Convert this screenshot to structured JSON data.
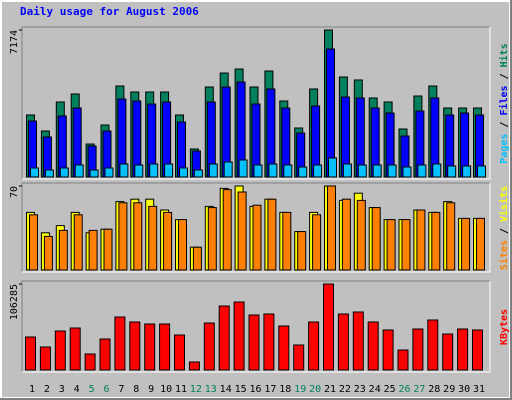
{
  "chart_data": [
    {
      "type": "bar",
      "title": "Daily usage for August 2006",
      "legend_separator": " / ",
      "ylim": [
        0,
        7174
      ],
      "yticks": [
        7174
      ],
      "series": [
        {
          "name": "Hits",
          "color": "#00805c",
          "values": [
            3026,
            2245,
            3660,
            4051,
            1610,
            2538,
            4441,
            4148,
            4148,
            4148,
            3026,
            1367,
            4392,
            5076,
            5271,
            4392,
            5173,
            3709,
            2391,
            4295,
            7174,
            4880,
            4734,
            3856,
            3660,
            2343,
            3953,
            4441,
            3367,
            3367,
            3367
          ]
        },
        {
          "name": "Files",
          "color": "#0000ff",
          "values": [
            2733,
            1952,
            2977,
            3367,
            1513,
            2245,
            3807,
            3709,
            3563,
            3660,
            2684,
            1269,
            3660,
            4392,
            4636,
            3563,
            4295,
            3367,
            2147,
            3465,
            6247,
            3904,
            3856,
            3367,
            3123,
            2001,
            3221,
            3856,
            3026,
            3123,
            3026
          ]
        },
        {
          "name": "Pages",
          "color": "#00c0ff",
          "values": [
            439,
            342,
            439,
            586,
            342,
            439,
            634,
            586,
            634,
            634,
            439,
            342,
            634,
            732,
            830,
            586,
            634,
            586,
            488,
            586,
            927,
            634,
            586,
            586,
            586,
            488,
            586,
            634,
            537,
            537,
            537
          ]
        }
      ]
    },
    {
      "type": "bar",
      "legend_separator": " / ",
      "ylim": [
        0,
        70
      ],
      "yticks": [
        70
      ],
      "series": [
        {
          "name": "Visits",
          "color": "#ffff00",
          "values": [
            48,
            31,
            37,
            48,
            31,
            34,
            57,
            59,
            59,
            50,
            42,
            19,
            53,
            68,
            70,
            53,
            59,
            48,
            32,
            48,
            70,
            58,
            64,
            52,
            42,
            42,
            50,
            48,
            57,
            43,
            43
          ]
        },
        {
          "name": "Sites",
          "color": "#ff8000",
          "values": [
            46,
            28,
            33,
            46,
            33,
            34,
            56,
            56,
            53,
            48,
            42,
            19,
            52,
            67,
            65,
            54,
            59,
            48,
            32,
            46,
            70,
            59,
            58,
            52,
            42,
            42,
            50,
            48,
            56,
            43,
            43
          ]
        }
      ]
    },
    {
      "type": "bar",
      "legend_separator": " / ",
      "ylim": [
        0,
        106285
      ],
      "yticks": [
        106285
      ],
      "categories": [
        "1",
        "2",
        "3",
        "4",
        "5",
        "6",
        "7",
        "8",
        "9",
        "10",
        "11",
        "12",
        "13",
        "14",
        "15",
        "16",
        "17",
        "18",
        "19",
        "20",
        "21",
        "22",
        "23",
        "24",
        "25",
        "26",
        "27",
        "28",
        "29",
        "30",
        "31"
      ],
      "category_colors": [
        "#000000",
        "#000000",
        "#000000",
        "#000000",
        "#00805c",
        "#00805c",
        "#000000",
        "#000000",
        "#000000",
        "#000000",
        "#000000",
        "#00805c",
        "#00805c",
        "#000000",
        "#000000",
        "#000000",
        "#000000",
        "#000000",
        "#00805c",
        "#00805c",
        "#000000",
        "#000000",
        "#000000",
        "#000000",
        "#000000",
        "#00805c",
        "#00805c",
        "#000000",
        "#000000",
        "#000000",
        "#000000"
      ],
      "series": [
        {
          "name": "KBytes",
          "color": "#ff0000",
          "values": [
            40784,
            28425,
            48200,
            51907,
            19774,
            38312,
            65502,
            59322,
            56850,
            56850,
            43256,
            9887,
            58086,
            79097,
            84040,
            67973,
            69209,
            54378,
            30897,
            59322,
            106285,
            69209,
            71681,
            59322,
            49435,
            24717,
            50671,
            61793,
            44491,
            50671,
            49435
          ]
        }
      ]
    }
  ]
}
